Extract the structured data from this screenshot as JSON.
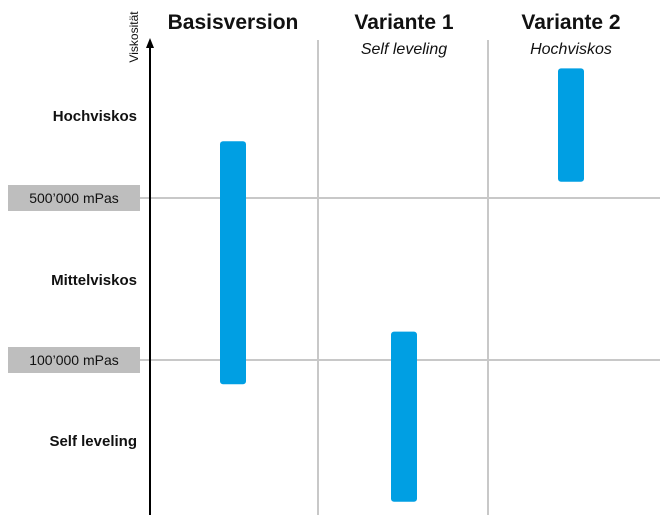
{
  "chart_data": {
    "type": "bar",
    "ylabel": "Viskosität",
    "columns": [
      {
        "title": "Basisversion",
        "subtitle": ""
      },
      {
        "title": "Variante 1",
        "subtitle": "Self leveling"
      },
      {
        "title": "Variante 2",
        "subtitle": "Hochviskos"
      }
    ],
    "categories": [
      "Self leveling",
      "Mittelviskos",
      "Hochviskos"
    ],
    "reference_lines": [
      {
        "label": "100’000 mPas",
        "value": 100000
      },
      {
        "label": "500’000 mPas",
        "value": 500000
      }
    ],
    "series": [
      {
        "category": "Basisversion",
        "low": 40000,
        "high": 640000
      },
      {
        "category": "Variante 1",
        "low": -250000,
        "high": 170000
      },
      {
        "category": "Variante 2",
        "low": 540000,
        "high": 820000
      }
    ],
    "bar_color": "#009FE3",
    "grid_color": "#C8C8C8",
    "label_box_color": "#BEBEBE"
  }
}
